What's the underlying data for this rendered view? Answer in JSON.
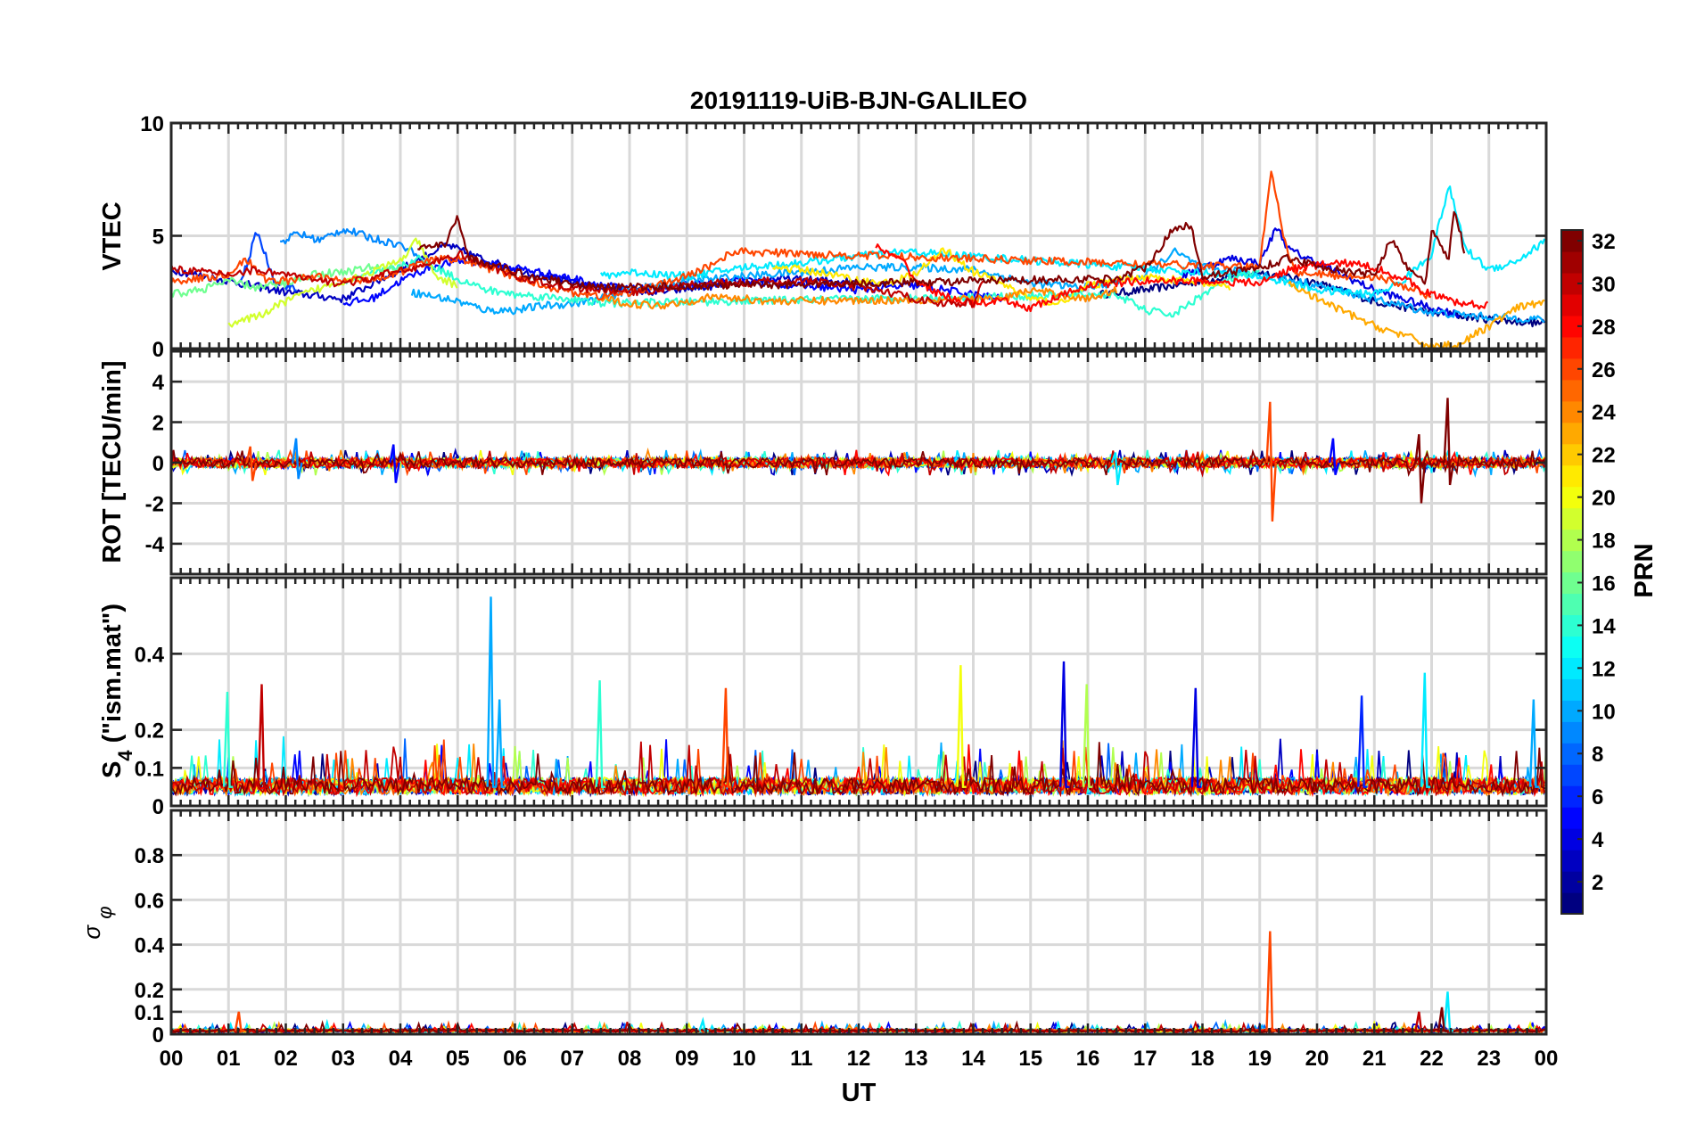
{
  "chart_data": {
    "type": "line",
    "title": "20191119-UiB-BJN-GALILEO",
    "xlabel": "UT",
    "x_unit": "hours UT",
    "xlim": [
      0,
      24
    ],
    "x_ticks": [
      0,
      1,
      2,
      3,
      4,
      5,
      6,
      7,
      8,
      9,
      10,
      11,
      12,
      13,
      14,
      15,
      16,
      17,
      18,
      19,
      20,
      21,
      22,
      23,
      24
    ],
    "x_tick_labels": [
      "00",
      "01",
      "02",
      "03",
      "04",
      "05",
      "06",
      "07",
      "08",
      "09",
      "10",
      "11",
      "12",
      "13",
      "14",
      "15",
      "16",
      "17",
      "18",
      "19",
      "20",
      "21",
      "22",
      "23",
      "00"
    ],
    "grid": true,
    "colorbar": {
      "label": "PRN",
      "range": [
        1,
        32
      ],
      "ticks": [
        2,
        4,
        6,
        8,
        10,
        12,
        14,
        16,
        18,
        20,
        22,
        24,
        26,
        28,
        30,
        32
      ],
      "colormap": "jet",
      "placement": "right"
    },
    "panels": [
      {
        "id": "vtec",
        "ylabel": "VTEC",
        "ylim": [
          0,
          10
        ],
        "y_ticks": [
          0,
          5,
          10
        ],
        "y_tick_labels": [
          "0",
          "5",
          "10"
        ],
        "series": [
          {
            "prn": 1,
            "x": [
              16.2,
              17,
              18,
              19,
              20,
              21,
              22,
              23,
              24
            ],
            "y": [
              2.4,
              2.6,
              3.0,
              3.4,
              2.9,
              2.1,
              1.6,
              1.3,
              1.1
            ]
          },
          {
            "prn": 3,
            "x": [
              0,
              1,
              2,
              3,
              4,
              4.8,
              5.5,
              6.5,
              7.5,
              8.5,
              9.5,
              10.5,
              11.5,
              12.5
            ],
            "y": [
              3.5,
              3.0,
              2.5,
              2.2,
              3.5,
              4.6,
              3.9,
              3.2,
              2.7,
              2.5,
              2.8,
              3.1,
              3.0,
              2.9
            ]
          },
          {
            "prn": 4,
            "x": [
              17.5,
              18,
              18.5,
              19,
              19.3,
              19.5,
              20,
              20.5,
              21,
              22,
              22.5
            ],
            "y": [
              3.0,
              3.6,
              4.0,
              3.8,
              5.4,
              4.4,
              3.8,
              3.2,
              2.6,
              1.8,
              1.5
            ]
          },
          {
            "prn": 5,
            "x": [
              3,
              3.5,
              4,
              4.5,
              5,
              6,
              7,
              8,
              9,
              10,
              11,
              12,
              13,
              14,
              14.5
            ],
            "y": [
              2.0,
              2.2,
              3.0,
              3.6,
              3.9,
              3.6,
              3.1,
              2.6,
              2.8,
              3.0,
              2.8,
              2.6,
              2.8,
              2.4,
              2.2
            ]
          },
          {
            "prn": 7,
            "x": [
              1.2,
              1.5,
              1.8,
              2.2
            ],
            "y": [
              2.8,
              5.2,
              3.0,
              2.6
            ]
          },
          {
            "prn": 9,
            "x": [
              1.9,
              2.2,
              2.6,
              3.0,
              3.5,
              4.0,
              4.3
            ],
            "y": [
              4.7,
              5.1,
              4.8,
              5.3,
              4.9,
              4.6,
              4.2
            ]
          },
          {
            "prn": 10,
            "x": [
              4.2,
              5,
              5.5,
              6,
              6.5,
              7,
              7.5,
              8,
              9,
              10,
              11,
              12,
              13,
              14,
              15,
              16,
              17,
              17.5,
              18,
              19,
              20,
              21,
              22,
              23,
              24
            ],
            "y": [
              2.5,
              2.1,
              1.7,
              1.7,
              1.9,
              2.0,
              2.2,
              2.6,
              3.0,
              3.2,
              3.4,
              3.6,
              3.6,
              3.5,
              2.9,
              2.7,
              3.2,
              4.3,
              3.6,
              3.3,
              2.8,
              2.2,
              1.6,
              1.4,
              1.3
            ]
          },
          {
            "prn": 12,
            "x": [
              7.5,
              8,
              9,
              10,
              11,
              12,
              12.8,
              19.0,
              19.5,
              20,
              21,
              21.5,
              22,
              22.3,
              22.6,
              23,
              23.5,
              24
            ],
            "y": [
              3.2,
              3.4,
              3.2,
              3.6,
              3.8,
              4.1,
              4.3,
              3.2,
              2.9,
              2.6,
              2.4,
              3.0,
              4.2,
              7.2,
              4.4,
              3.5,
              3.9,
              4.8
            ]
          },
          {
            "prn": 14,
            "x": [
              3,
              3.5,
              4,
              4.3,
              5,
              5.5,
              6,
              7,
              7.5,
              16.5,
              17,
              17.5,
              18,
              18.5,
              19
            ],
            "y": [
              3.0,
              3.3,
              3.6,
              4.0,
              3.1,
              2.6,
              2.4,
              2.2,
              2.0,
              2.4,
              1.7,
              1.5,
              2.4,
              3.1,
              3.4
            ]
          },
          {
            "prn": 16,
            "x": [
              0,
              0.5,
              1,
              1.5,
              2,
              2.5,
              3,
              3.5,
              4
            ],
            "y": [
              2.4,
              2.6,
              3.0,
              2.7,
              2.9,
              3.3,
              3.4,
              3.6,
              3.5
            ]
          },
          {
            "prn": 19,
            "x": [
              1,
              1.5,
              2,
              2.5,
              3,
              3.5,
              4,
              4.3,
              4.6,
              5
            ],
            "y": [
              1.1,
              1.4,
              2.1,
              2.6,
              3.0,
              3.4,
              3.9,
              4.8,
              3.2,
              2.8
            ]
          },
          {
            "prn": 21,
            "x": [
              10.5,
              11,
              11.5,
              12,
              12.5,
              13,
              13.5,
              14,
              14.5,
              15,
              15.5,
              16,
              17,
              18,
              18.5
            ],
            "y": [
              3.6,
              3.5,
              3.3,
              3.0,
              2.9,
              3.3,
              4.4,
              3.4,
              2.9,
              2.2,
              2.0,
              2.8,
              3.2,
              2.9,
              2.7
            ]
          },
          {
            "prn": 23,
            "x": [
              19.5,
              20,
              20.5,
              21,
              21.5,
              22,
              22.5,
              23,
              23.5,
              24
            ],
            "y": [
              2.9,
              2.2,
              1.6,
              1.0,
              0.6,
              0.1,
              0.2,
              1.0,
              1.8,
              2.1
            ]
          },
          {
            "prn": 24,
            "x": [
              7.5,
              8,
              8.5,
              9,
              9.5,
              10,
              10.5,
              14.5,
              15,
              15.5,
              16,
              16.5
            ],
            "y": [
              2.2,
              2.0,
              1.9,
              2.1,
              2.3,
              2.2,
              2.1,
              2.2,
              2.6,
              2.4,
              2.2,
              2.6
            ]
          },
          {
            "prn": 26,
            "x": [
              0,
              0.5,
              1,
              1.3,
              1.6,
              2,
              2.5,
              3,
              3.5,
              4,
              4.5,
              5,
              5.5,
              6,
              6.5,
              7,
              7.5,
              8,
              8.5,
              9,
              9.5,
              9.8,
              19.0,
              19.2,
              19.4,
              19.6,
              20,
              20.5,
              21,
              21.5,
              22
            ],
            "y": [
              3.0,
              3.1,
              3.3,
              4.0,
              3.1,
              3.0,
              3.2,
              3.0,
              3.1,
              3.4,
              3.9,
              4.0,
              3.6,
              3.2,
              2.8,
              2.5,
              2.3,
              2.5,
              2.8,
              3.2,
              3.8,
              4.3,
              3.6,
              8.0,
              5.2,
              3.4,
              3.3,
              3.2,
              3.2,
              2.8,
              2.3
            ]
          },
          {
            "prn": 28,
            "x": [
              12.3,
              12.8,
              13,
              13.5,
              14,
              14.5,
              15,
              15.5,
              16,
              17,
              18,
              19,
              19.5,
              20,
              20.5,
              21,
              21.5,
              22,
              22.5,
              23
            ],
            "y": [
              4.5,
              3.8,
              3.0,
              2.3,
              2.0,
              2.1,
              1.8,
              2.3,
              2.8,
              3.0,
              3.0,
              2.9,
              3.5,
              3.7,
              3.8,
              3.6,
              3.1,
              2.4,
              2.0,
              1.9
            ]
          },
          {
            "prn": 30,
            "x": [
              0,
              0.5,
              1,
              1.5,
              2,
              2.5,
              3,
              3.5,
              4,
              4.5,
              5,
              5.5,
              6,
              6.5,
              7,
              7.5,
              8,
              8.5,
              9,
              9.5,
              10,
              10.5,
              11,
              11.5,
              12,
              12.5,
              13,
              13.5,
              14,
              14.2
            ],
            "y": [
              3.6,
              3.4,
              3.3,
              3.5,
              3.3,
              3.0,
              2.9,
              3.1,
              3.5,
              3.7,
              4.2,
              3.7,
              3.2,
              2.9,
              2.7,
              2.6,
              2.5,
              2.6,
              2.8,
              2.9,
              2.9,
              3.0,
              3.0,
              2.9,
              2.7,
              2.5,
              2.2,
              2.0,
              2.0,
              3.1
            ]
          },
          {
            "prn": 32,
            "x": [
              4.3,
              4.8,
              5.0,
              5.2,
              5.5,
              6,
              6.5,
              7,
              7.5,
              16.5,
              17,
              17.5,
              17.8,
              18,
              19,
              19.5,
              20,
              20.5,
              21,
              21.3,
              21.5,
              21.9,
              22.0,
              22.3,
              22.4,
              22.6
            ],
            "y": [
              4.5,
              4.6,
              5.9,
              4.0,
              3.8,
              3.4,
              3.1,
              2.9,
              2.7,
              3.1,
              3.6,
              5.3,
              5.5,
              3.2,
              3.6,
              4.0,
              3.7,
              3.4,
              3.3,
              4.9,
              3.8,
              2.9,
              5.2,
              4.0,
              6.2,
              4.0
            ]
          }
        ]
      },
      {
        "id": "rot",
        "ylabel": "ROT [TECU/min]",
        "ylim": [
          -5.5,
          5.5
        ],
        "y_ticks": [
          -4,
          -2,
          0,
          2,
          4
        ],
        "y_tick_labels": [
          "-4",
          "-2",
          "0",
          "2",
          "4"
        ],
        "baseline": 0,
        "noise_amplitude": 0.25,
        "spikes": [
          {
            "prn": 9,
            "x": 2.2,
            "max": 1.2,
            "min": -0.8
          },
          {
            "prn": 5,
            "x": 3.9,
            "max": 0.9,
            "min": -1.0
          },
          {
            "prn": 26,
            "x": 1.4,
            "max": 0.8,
            "min": -0.9
          },
          {
            "prn": 12,
            "x": 16.5,
            "max": 0.5,
            "min": -1.1
          },
          {
            "prn": 26,
            "x": 19.2,
            "max": 3.0,
            "min": -2.9
          },
          {
            "prn": 5,
            "x": 20.3,
            "max": 1.2,
            "min": -0.6
          },
          {
            "prn": 32,
            "x": 21.8,
            "max": 1.4,
            "min": -2.0
          },
          {
            "prn": 32,
            "x": 22.3,
            "max": 3.2,
            "min": -1.1
          }
        ]
      },
      {
        "id": "s4",
        "ylabel": "S4 (\"ism.mat\")",
        "ylim": [
          0,
          0.6
        ],
        "y_ticks": [
          0,
          0.1,
          0.2,
          0.4
        ],
        "y_tick_labels": [
          "0",
          "0.1",
          "0.2",
          "0.4"
        ],
        "background_level": 0.05,
        "spikes": [
          {
            "prn": 14,
            "x": 1.0,
            "max": 0.3
          },
          {
            "prn": 30,
            "x": 1.6,
            "max": 0.32
          },
          {
            "prn": 10,
            "x": 5.6,
            "max": 0.55
          },
          {
            "prn": 10,
            "x": 5.75,
            "max": 0.28
          },
          {
            "prn": 14,
            "x": 7.5,
            "max": 0.33
          },
          {
            "prn": 26,
            "x": 9.7,
            "max": 0.31
          },
          {
            "prn": 20,
            "x": 13.8,
            "max": 0.37
          },
          {
            "prn": 4,
            "x": 15.6,
            "max": 0.38
          },
          {
            "prn": 18,
            "x": 16.0,
            "max": 0.32
          },
          {
            "prn": 4,
            "x": 17.9,
            "max": 0.31
          },
          {
            "prn": 6,
            "x": 20.8,
            "max": 0.29
          },
          {
            "prn": 12,
            "x": 21.9,
            "max": 0.35
          },
          {
            "prn": 10,
            "x": 23.8,
            "max": 0.28
          }
        ]
      },
      {
        "id": "sigma_phi",
        "ylabel": "σ φ",
        "ylim": [
          0,
          1.0
        ],
        "y_ticks": [
          0,
          0.1,
          0.2,
          0.4,
          0.6,
          0.8
        ],
        "y_tick_labels": [
          "0",
          "0.1",
          "0.2",
          "0.4",
          "0.6",
          "0.8"
        ],
        "background_level": 0.015,
        "spikes": [
          {
            "prn": 26,
            "x": 1.2,
            "max": 0.1
          },
          {
            "prn": 12,
            "x": 9.3,
            "max": 0.06
          },
          {
            "prn": 26,
            "x": 19.2,
            "max": 0.46
          },
          {
            "prn": 30,
            "x": 21.8,
            "max": 0.1
          },
          {
            "prn": 12,
            "x": 22.3,
            "max": 0.19
          },
          {
            "prn": 32,
            "x": 22.2,
            "max": 0.12
          }
        ]
      }
    ]
  }
}
